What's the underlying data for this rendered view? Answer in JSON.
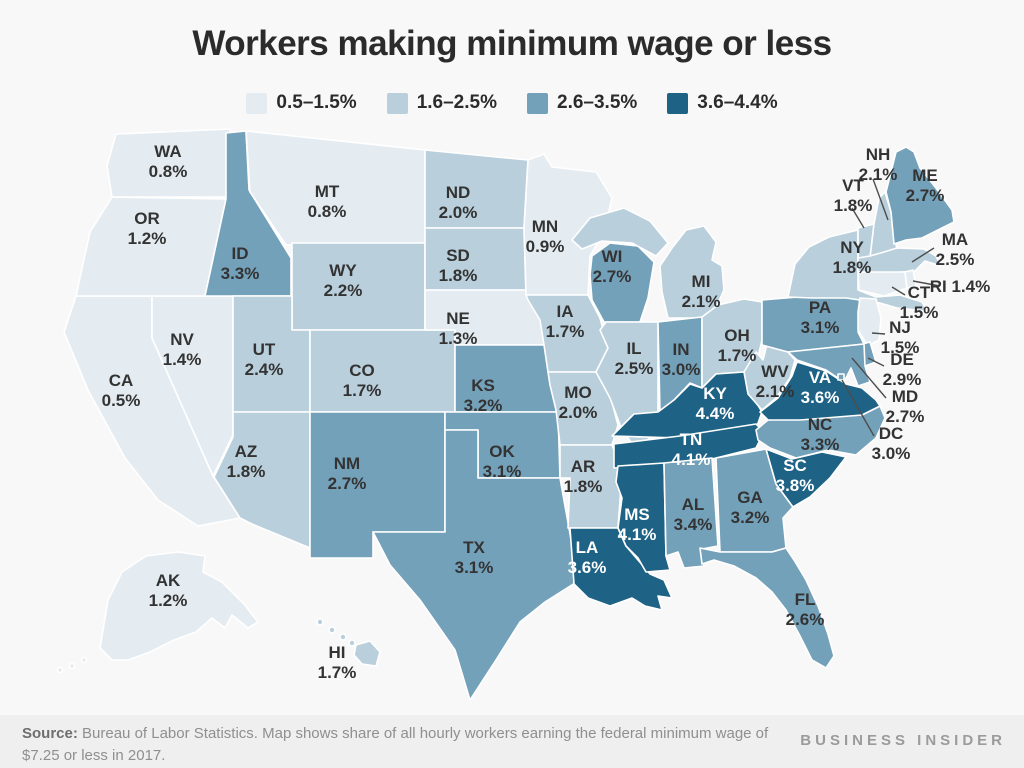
{
  "title": "Workers making minimum wage or less",
  "legend": [
    {
      "label": "0.5–1.5%",
      "color": "#e4ecf1",
      "min": 0.5,
      "max": 1.5
    },
    {
      "label": "1.6–2.5%",
      "color": "#b9cfdc",
      "min": 1.6,
      "max": 2.5
    },
    {
      "label": "2.6–3.5%",
      "color": "#74a1ba",
      "min": 2.6,
      "max": 3.5
    },
    {
      "label": "3.6–4.4%",
      "color": "#1e6285",
      "min": 3.6,
      "max": 4.4
    }
  ],
  "map": {
    "states": [
      {
        "abbr": "WA",
        "value": "0.8%"
      },
      {
        "abbr": "OR",
        "value": "1.2%"
      },
      {
        "abbr": "CA",
        "value": "0.5%"
      },
      {
        "abbr": "NV",
        "value": "1.4%"
      },
      {
        "abbr": "ID",
        "value": "3.3%"
      },
      {
        "abbr": "MT",
        "value": "0.8%"
      },
      {
        "abbr": "WY",
        "value": "2.2%"
      },
      {
        "abbr": "UT",
        "value": "2.4%"
      },
      {
        "abbr": "CO",
        "value": "1.7%"
      },
      {
        "abbr": "AZ",
        "value": "1.8%"
      },
      {
        "abbr": "NM",
        "value": "2.7%"
      },
      {
        "abbr": "ND",
        "value": "2.0%"
      },
      {
        "abbr": "SD",
        "value": "1.8%"
      },
      {
        "abbr": "NE",
        "value": "1.3%"
      },
      {
        "abbr": "KS",
        "value": "3.2%"
      },
      {
        "abbr": "OK",
        "value": "3.1%"
      },
      {
        "abbr": "TX",
        "value": "3.1%"
      },
      {
        "abbr": "MN",
        "value": "0.9%"
      },
      {
        "abbr": "IA",
        "value": "1.7%"
      },
      {
        "abbr": "MO",
        "value": "2.0%"
      },
      {
        "abbr": "AR",
        "value": "1.8%"
      },
      {
        "abbr": "LA",
        "value": "3.6%"
      },
      {
        "abbr": "WI",
        "value": "2.7%"
      },
      {
        "abbr": "IL",
        "value": "2.5%"
      },
      {
        "abbr": "MS",
        "value": "4.1%"
      },
      {
        "abbr": "MI",
        "value": "2.1%"
      },
      {
        "abbr": "IN",
        "value": "3.0%"
      },
      {
        "abbr": "OH",
        "value": "1.7%"
      },
      {
        "abbr": "KY",
        "value": "4.4%"
      },
      {
        "abbr": "TN",
        "value": "4.1%"
      },
      {
        "abbr": "AL",
        "value": "3.4%"
      },
      {
        "abbr": "GA",
        "value": "3.2%"
      },
      {
        "abbr": "FL",
        "value": "2.6%"
      },
      {
        "abbr": "SC",
        "value": "3.8%"
      },
      {
        "abbr": "NC",
        "value": "3.3%"
      },
      {
        "abbr": "VA",
        "value": "3.6%"
      },
      {
        "abbr": "WV",
        "value": "2.1%"
      },
      {
        "abbr": "PA",
        "value": "3.1%"
      },
      {
        "abbr": "NY",
        "value": "1.8%"
      },
      {
        "abbr": "NJ",
        "value": "1.5%"
      },
      {
        "abbr": "DE",
        "value": "2.9%"
      },
      {
        "abbr": "MD",
        "value": "2.7%"
      },
      {
        "abbr": "DC",
        "value": "3.0%"
      },
      {
        "abbr": "CT",
        "value": "1.5%"
      },
      {
        "abbr": "RI",
        "value": "1.4%"
      },
      {
        "abbr": "MA",
        "value": "2.5%"
      },
      {
        "abbr": "VT",
        "value": "1.8%"
      },
      {
        "abbr": "NH",
        "value": "2.1%"
      },
      {
        "abbr": "ME",
        "value": "2.7%"
      },
      {
        "abbr": "AK",
        "value": "1.2%"
      },
      {
        "abbr": "HI",
        "value": "1.7%"
      }
    ]
  },
  "chart_data": {
    "type": "heatmap",
    "subtype": "us-choropleth-map",
    "title": "Workers making minimum wage or less",
    "categories": [
      "WA",
      "OR",
      "CA",
      "NV",
      "ID",
      "MT",
      "WY",
      "UT",
      "CO",
      "AZ",
      "NM",
      "ND",
      "SD",
      "NE",
      "KS",
      "OK",
      "TX",
      "MN",
      "IA",
      "MO",
      "AR",
      "LA",
      "WI",
      "IL",
      "MS",
      "MI",
      "IN",
      "OH",
      "KY",
      "TN",
      "AL",
      "GA",
      "FL",
      "SC",
      "NC",
      "VA",
      "WV",
      "PA",
      "NY",
      "NJ",
      "DE",
      "MD",
      "DC",
      "CT",
      "RI",
      "MA",
      "VT",
      "NH",
      "ME",
      "AK",
      "HI"
    ],
    "values": [
      0.8,
      1.2,
      0.5,
      1.4,
      3.3,
      0.8,
      2.2,
      2.4,
      1.7,
      1.8,
      2.7,
      2.0,
      1.8,
      1.3,
      3.2,
      3.1,
      3.1,
      0.9,
      1.7,
      2.0,
      1.8,
      3.6,
      2.7,
      2.5,
      4.1,
      2.1,
      3.0,
      1.7,
      4.4,
      4.1,
      3.4,
      3.2,
      2.6,
      3.8,
      3.3,
      3.6,
      2.1,
      3.1,
      1.8,
      1.5,
      2.9,
      2.7,
      3.0,
      1.5,
      1.4,
      2.5,
      1.8,
      2.1,
      2.7,
      1.2,
      1.7
    ],
    "unit": "%",
    "legend_buckets": [
      "0.5–1.5%",
      "1.6–2.5%",
      "2.6–3.5%",
      "3.6–4.4%"
    ],
    "legend_position": "top-center"
  },
  "footer": {
    "source_label": "Source:",
    "source_rest": " Bureau of Labor Statistics. Map shows share of all hourly workers earning the federal minimum wage of $7.25 or less in 2017.",
    "brand": "BUSINESS INSIDER"
  }
}
